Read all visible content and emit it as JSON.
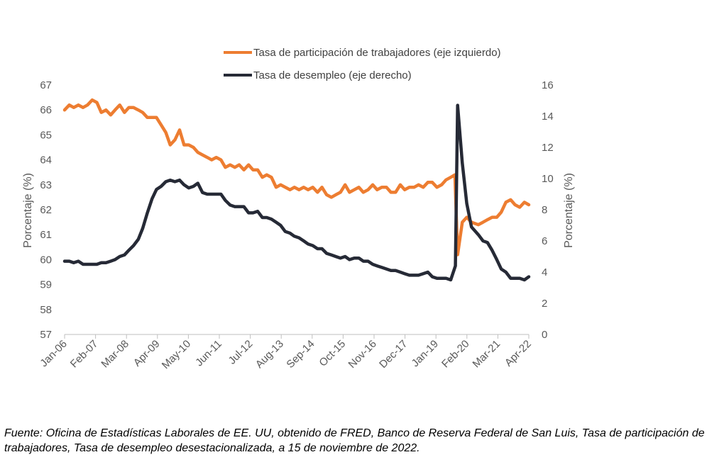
{
  "chart_data": {
    "type": "line",
    "title": "",
    "xlabel": "",
    "ylabel": "Porcentaje (%)",
    "y2label": "Porcentaje (%)",
    "ylim": [
      57,
      67
    ],
    "y2lim": [
      0,
      16
    ],
    "yticks": [
      57,
      58,
      59,
      60,
      61,
      62,
      63,
      64,
      65,
      66,
      67
    ],
    "y2ticks": [
      0,
      2,
      4,
      6,
      8,
      10,
      12,
      14,
      16
    ],
    "xticks": [
      "Jan-06",
      "Feb-07",
      "Mar-08",
      "Apr-09",
      "May-10",
      "Jun-11",
      "Jul-12",
      "Aug-13",
      "Sep-14",
      "Oct-15",
      "Nov-16",
      "Dec-17",
      "Jan-19",
      "Feb-20",
      "Mar-21",
      "Apr-22"
    ],
    "x_range": [
      2006.0,
      2022.83
    ],
    "series": [
      {
        "name": "Tasa de participación de trabajadores (eje izquierdo)",
        "axis": "left",
        "color": "#ED7D31",
        "points": [
          [
            2006.0,
            66.0
          ],
          [
            2006.17,
            66.2
          ],
          [
            2006.33,
            66.1
          ],
          [
            2006.5,
            66.2
          ],
          [
            2006.67,
            66.1
          ],
          [
            2006.83,
            66.2
          ],
          [
            2007.0,
            66.4
          ],
          [
            2007.17,
            66.3
          ],
          [
            2007.33,
            65.9
          ],
          [
            2007.5,
            66.0
          ],
          [
            2007.67,
            65.8
          ],
          [
            2007.83,
            66.0
          ],
          [
            2008.0,
            66.2
          ],
          [
            2008.17,
            65.9
          ],
          [
            2008.33,
            66.1
          ],
          [
            2008.5,
            66.1
          ],
          [
            2008.67,
            66.0
          ],
          [
            2008.83,
            65.9
          ],
          [
            2009.0,
            65.7
          ],
          [
            2009.17,
            65.7
          ],
          [
            2009.33,
            65.7
          ],
          [
            2009.5,
            65.4
          ],
          [
            2009.67,
            65.1
          ],
          [
            2009.83,
            64.6
          ],
          [
            2010.0,
            64.8
          ],
          [
            2010.17,
            65.2
          ],
          [
            2010.33,
            64.6
          ],
          [
            2010.5,
            64.6
          ],
          [
            2010.67,
            64.5
          ],
          [
            2010.83,
            64.3
          ],
          [
            2011.0,
            64.2
          ],
          [
            2011.17,
            64.1
          ],
          [
            2011.33,
            64.0
          ],
          [
            2011.5,
            64.1
          ],
          [
            2011.67,
            64.0
          ],
          [
            2011.83,
            63.7
          ],
          [
            2012.0,
            63.8
          ],
          [
            2012.17,
            63.7
          ],
          [
            2012.33,
            63.8
          ],
          [
            2012.5,
            63.6
          ],
          [
            2012.67,
            63.8
          ],
          [
            2012.83,
            63.6
          ],
          [
            2013.0,
            63.6
          ],
          [
            2013.17,
            63.3
          ],
          [
            2013.33,
            63.4
          ],
          [
            2013.5,
            63.3
          ],
          [
            2013.67,
            62.9
          ],
          [
            2013.83,
            63.0
          ],
          [
            2014.0,
            62.9
          ],
          [
            2014.17,
            62.8
          ],
          [
            2014.33,
            62.9
          ],
          [
            2014.5,
            62.8
          ],
          [
            2014.67,
            62.9
          ],
          [
            2014.83,
            62.8
          ],
          [
            2015.0,
            62.9
          ],
          [
            2015.17,
            62.7
          ],
          [
            2015.33,
            62.9
          ],
          [
            2015.5,
            62.6
          ],
          [
            2015.67,
            62.5
          ],
          [
            2015.83,
            62.6
          ],
          [
            2016.0,
            62.7
          ],
          [
            2016.17,
            63.0
          ],
          [
            2016.33,
            62.7
          ],
          [
            2016.5,
            62.8
          ],
          [
            2016.67,
            62.9
          ],
          [
            2016.83,
            62.7
          ],
          [
            2017.0,
            62.8
          ],
          [
            2017.17,
            63.0
          ],
          [
            2017.33,
            62.8
          ],
          [
            2017.5,
            62.9
          ],
          [
            2017.67,
            62.9
          ],
          [
            2017.83,
            62.7
          ],
          [
            2018.0,
            62.7
          ],
          [
            2018.17,
            63.0
          ],
          [
            2018.33,
            62.8
          ],
          [
            2018.5,
            62.9
          ],
          [
            2018.67,
            62.9
          ],
          [
            2018.83,
            63.0
          ],
          [
            2019.0,
            62.9
          ],
          [
            2019.17,
            63.1
          ],
          [
            2019.33,
            63.1
          ],
          [
            2019.5,
            62.9
          ],
          [
            2019.67,
            63.0
          ],
          [
            2019.83,
            63.2
          ],
          [
            2020.0,
            63.3
          ],
          [
            2020.15,
            63.4
          ],
          [
            2020.25,
            60.2
          ],
          [
            2020.42,
            61.5
          ],
          [
            2020.58,
            61.7
          ],
          [
            2020.75,
            61.5
          ],
          [
            2021.0,
            61.4
          ],
          [
            2021.17,
            61.5
          ],
          [
            2021.33,
            61.6
          ],
          [
            2021.5,
            61.7
          ],
          [
            2021.67,
            61.7
          ],
          [
            2021.83,
            61.9
          ],
          [
            2022.0,
            62.3
          ],
          [
            2022.17,
            62.4
          ],
          [
            2022.33,
            62.2
          ],
          [
            2022.5,
            62.1
          ],
          [
            2022.67,
            62.3
          ],
          [
            2022.83,
            62.2
          ]
        ]
      },
      {
        "name": "Tasa de desempleo (eje derecho)",
        "axis": "right",
        "color": "#262A36",
        "points": [
          [
            2006.0,
            4.7
          ],
          [
            2006.17,
            4.7
          ],
          [
            2006.33,
            4.6
          ],
          [
            2006.5,
            4.7
          ],
          [
            2006.67,
            4.5
          ],
          [
            2006.83,
            4.5
          ],
          [
            2007.0,
            4.5
          ],
          [
            2007.17,
            4.5
          ],
          [
            2007.33,
            4.6
          ],
          [
            2007.5,
            4.6
          ],
          [
            2007.67,
            4.7
          ],
          [
            2007.83,
            4.8
          ],
          [
            2008.0,
            5.0
          ],
          [
            2008.17,
            5.1
          ],
          [
            2008.33,
            5.4
          ],
          [
            2008.5,
            5.7
          ],
          [
            2008.67,
            6.1
          ],
          [
            2008.83,
            6.8
          ],
          [
            2009.0,
            7.8
          ],
          [
            2009.17,
            8.7
          ],
          [
            2009.33,
            9.3
          ],
          [
            2009.5,
            9.5
          ],
          [
            2009.67,
            9.8
          ],
          [
            2009.83,
            9.9
          ],
          [
            2010.0,
            9.8
          ],
          [
            2010.17,
            9.9
          ],
          [
            2010.33,
            9.6
          ],
          [
            2010.5,
            9.4
          ],
          [
            2010.67,
            9.5
          ],
          [
            2010.83,
            9.7
          ],
          [
            2011.0,
            9.1
          ],
          [
            2011.17,
            9.0
          ],
          [
            2011.33,
            9.0
          ],
          [
            2011.5,
            9.0
          ],
          [
            2011.67,
            9.0
          ],
          [
            2011.83,
            8.6
          ],
          [
            2012.0,
            8.3
          ],
          [
            2012.17,
            8.2
          ],
          [
            2012.33,
            8.2
          ],
          [
            2012.5,
            8.2
          ],
          [
            2012.67,
            7.8
          ],
          [
            2012.83,
            7.8
          ],
          [
            2013.0,
            7.9
          ],
          [
            2013.17,
            7.5
          ],
          [
            2013.33,
            7.5
          ],
          [
            2013.5,
            7.4
          ],
          [
            2013.67,
            7.2
          ],
          [
            2013.83,
            7.0
          ],
          [
            2014.0,
            6.6
          ],
          [
            2014.17,
            6.5
          ],
          [
            2014.33,
            6.3
          ],
          [
            2014.5,
            6.2
          ],
          [
            2014.67,
            6.0
          ],
          [
            2014.83,
            5.8
          ],
          [
            2015.0,
            5.7
          ],
          [
            2015.17,
            5.5
          ],
          [
            2015.33,
            5.5
          ],
          [
            2015.5,
            5.2
          ],
          [
            2015.67,
            5.1
          ],
          [
            2015.83,
            5.0
          ],
          [
            2016.0,
            4.9
          ],
          [
            2016.17,
            5.0
          ],
          [
            2016.33,
            4.8
          ],
          [
            2016.5,
            4.9
          ],
          [
            2016.67,
            4.9
          ],
          [
            2016.83,
            4.7
          ],
          [
            2017.0,
            4.7
          ],
          [
            2017.17,
            4.5
          ],
          [
            2017.33,
            4.4
          ],
          [
            2017.5,
            4.3
          ],
          [
            2017.67,
            4.2
          ],
          [
            2017.83,
            4.1
          ],
          [
            2018.0,
            4.1
          ],
          [
            2018.17,
            4.0
          ],
          [
            2018.33,
            3.9
          ],
          [
            2018.5,
            3.8
          ],
          [
            2018.67,
            3.8
          ],
          [
            2018.83,
            3.8
          ],
          [
            2019.0,
            3.9
          ],
          [
            2019.17,
            4.0
          ],
          [
            2019.33,
            3.7
          ],
          [
            2019.5,
            3.6
          ],
          [
            2019.67,
            3.6
          ],
          [
            2019.83,
            3.6
          ],
          [
            2020.0,
            3.5
          ],
          [
            2020.17,
            4.4
          ],
          [
            2020.25,
            14.7
          ],
          [
            2020.42,
            11.0
          ],
          [
            2020.58,
            8.4
          ],
          [
            2020.75,
            6.9
          ],
          [
            2021.0,
            6.4
          ],
          [
            2021.17,
            6.0
          ],
          [
            2021.33,
            5.9
          ],
          [
            2021.5,
            5.4
          ],
          [
            2021.67,
            4.8
          ],
          [
            2021.83,
            4.2
          ],
          [
            2022.0,
            4.0
          ],
          [
            2022.17,
            3.6
          ],
          [
            2022.33,
            3.6
          ],
          [
            2022.5,
            3.6
          ],
          [
            2022.67,
            3.5
          ],
          [
            2022.83,
            3.7
          ]
        ]
      }
    ],
    "legend": "top"
  },
  "source_note": "Fuente: Oficina de Estadísticas Laborales de EE. UU, obtenido de FRED, Banco de Reserva Federal de San Luis, Tasa de participación de trabajadores, Tasa de desempleo desestacionalizada, a 15 de noviembre de 2022."
}
